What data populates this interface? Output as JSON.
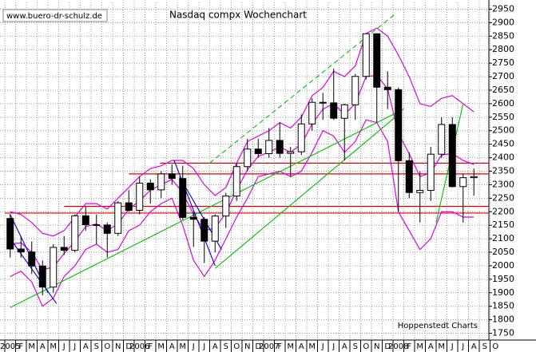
{
  "chart_data": {
    "type": "candlestick",
    "title": "Nasdaq compx Wochenchart",
    "source": "www.buero-dr-schulz.de",
    "credit": "Hoppenstedt Charts",
    "categories": [
      "2005",
      "F",
      "M",
      "A",
      "M",
      "J",
      "J",
      "A",
      "S",
      "O",
      "N",
      "D",
      "2006",
      "F",
      "M",
      "A",
      "M",
      "J",
      "J",
      "A",
      "S",
      "O",
      "N",
      "D",
      "2007",
      "F",
      "M",
      "A",
      "M",
      "J",
      "J",
      "A",
      "S",
      "O",
      "N",
      "D",
      "2008",
      "F",
      "M",
      "A",
      "M",
      "J",
      "J",
      "A",
      "S",
      "O"
    ],
    "open": [
      2175,
      2062,
      2051,
      1999,
      1921,
      2068,
      2057,
      2185,
      2152,
      2151,
      2120,
      2233,
      2205,
      2306,
      2281,
      2340,
      2323,
      2179,
      2172,
      2091,
      2184,
      2258,
      2367,
      2432,
      2415,
      2464,
      2416,
      2422,
      2525,
      2605,
      2603,
      2546,
      2596,
      2701,
      2859,
      2661,
      2652,
      2389,
      2271,
      2279,
      2413,
      2523,
      2293,
      2326,
      null,
      null
    ],
    "high": [
      2191,
      2110,
      2090,
      2020,
      2080,
      2110,
      2190,
      2220,
      2190,
      2160,
      2240,
      2280,
      2330,
      2320,
      2350,
      2375,
      2370,
      2200,
      2180,
      2190,
      2270,
      2380,
      2470,
      2470,
      2510,
      2530,
      2440,
      2560,
      2620,
      2640,
      2730,
      2600,
      2710,
      2860,
      2860,
      2720,
      2660,
      2420,
      2350,
      2440,
      2550,
      2550,
      2340,
      2360,
      null,
      null
    ],
    "low": [
      2030,
      2030,
      1970,
      1890,
      1900,
      2040,
      2050,
      2130,
      2080,
      2030,
      2110,
      2200,
      2190,
      2230,
      2250,
      2300,
      2170,
      2070,
      2010,
      2050,
      2140,
      2240,
      2350,
      2400,
      2400,
      2400,
      2330,
      2410,
      2500,
      2540,
      2540,
      2390,
      2540,
      2690,
      2530,
      2580,
      2200,
      2250,
      2160,
      2240,
      2400,
      2290,
      2160,
      2260,
      null,
      null
    ],
    "close": [
      2062,
      2051,
      1999,
      1921,
      2068,
      2057,
      2185,
      2152,
      2151,
      2120,
      2233,
      2205,
      2306,
      2281,
      2340,
      2323,
      2179,
      2172,
      2091,
      2184,
      2258,
      2367,
      2432,
      2415,
      2464,
      2416,
      2422,
      2525,
      2605,
      2603,
      2546,
      2596,
      2701,
      2859,
      2661,
      2652,
      2389,
      2271,
      2279,
      2413,
      2523,
      2293,
      2326,
      2330,
      null,
      null
    ],
    "candle_color": "#000000",
    "bands": {
      "color": "#e000e0",
      "series": [
        {
          "values": [
            2200,
            2190,
            2160,
            2120,
            2110,
            2130,
            2180,
            2230,
            2230,
            2210,
            2250,
            2290,
            2330,
            2360,
            2370,
            2390,
            2390,
            2360,
            2300,
            2260,
            2290,
            2380,
            2460,
            2480,
            2500,
            2530,
            2510,
            2550,
            2630,
            2660,
            2720,
            2700,
            2740,
            2860,
            2880,
            2850,
            2780,
            2700,
            2600,
            2590,
            2620,
            2630,
            2600,
            2570,
            null,
            null
          ]
        },
        {
          "values": [
            2080,
            2085,
            2050,
            1985,
            1995,
            2045,
            2090,
            2145,
            2155,
            2130,
            2155,
            2210,
            2240,
            2280,
            2300,
            2320,
            2270,
            2190,
            2130,
            2140,
            2195,
            2280,
            2355,
            2405,
            2420,
            2440,
            2420,
            2450,
            2525,
            2580,
            2600,
            2560,
            2600,
            2700,
            2705,
            2655,
            2490,
            2415,
            2330,
            2345,
            2410,
            2415,
            2390,
            2375,
            null,
            null
          ]
        },
        {
          "values": [
            1960,
            1980,
            1940,
            1850,
            1880,
            1960,
            2000,
            2060,
            2080,
            2050,
            2060,
            2130,
            2150,
            2200,
            2230,
            2250,
            2150,
            2020,
            1960,
            2020,
            2100,
            2180,
            2250,
            2330,
            2340,
            2350,
            2330,
            2350,
            2420,
            2500,
            2480,
            2420,
            2460,
            2540,
            2530,
            2460,
            2200,
            2130,
            2060,
            2100,
            2200,
            2200,
            2180,
            2180,
            null,
            null
          ]
        }
      ]
    },
    "trendlines": [
      {
        "color": "#00c000",
        "dashed": false,
        "x": [
          0,
          36.5
        ],
        "y": [
          1845,
          2580
        ]
      },
      {
        "color": "#00c000",
        "dashed": true,
        "x": [
          18.5,
          35.8
        ],
        "y": [
          2380,
          2935
        ]
      },
      {
        "color": "#00c000",
        "dashed": false,
        "x": [
          19,
          36
        ],
        "y": [
          1990,
          2560
        ]
      },
      {
        "color": "#00c000",
        "dashed": false,
        "x": [
          39.5,
          42
        ],
        "y": [
          2160,
          2600
        ]
      },
      {
        "color": "#0000c0",
        "dashed": false,
        "x": [
          0,
          3.5
        ],
        "y": [
          2190,
          1900
        ]
      },
      {
        "color": "#0000c0",
        "dashed": false,
        "x": [
          0,
          4.3
        ],
        "y": [
          2100,
          1860
        ]
      },
      {
        "color": "#0000c0",
        "dashed": false,
        "x": [
          15.2,
          19
        ],
        "y": [
          2390,
          2000
        ]
      },
      {
        "color": "#0000c0",
        "dashed": false,
        "x": [
          15.7,
          19.6
        ],
        "y": [
          2330,
          2060
        ]
      }
    ],
    "hlines": {
      "color": "#e00000",
      "lines": [
        {
          "value": 2380,
          "start": 14.4
        },
        {
          "value": 2340,
          "start": 11.5
        },
        {
          "value": 2220,
          "start": 5.5
        },
        {
          "value": 2195,
          "start": 0
        }
      ]
    },
    "ylim": [
      1725,
      2975
    ],
    "yticks": [
      1750,
      1800,
      1850,
      1900,
      1950,
      2000,
      2050,
      2100,
      2150,
      2200,
      2250,
      2300,
      2350,
      2400,
      2450,
      2500,
      2550,
      2600,
      2650,
      2700,
      2750,
      2800,
      2850,
      2900,
      2950
    ],
    "grid": true
  }
}
